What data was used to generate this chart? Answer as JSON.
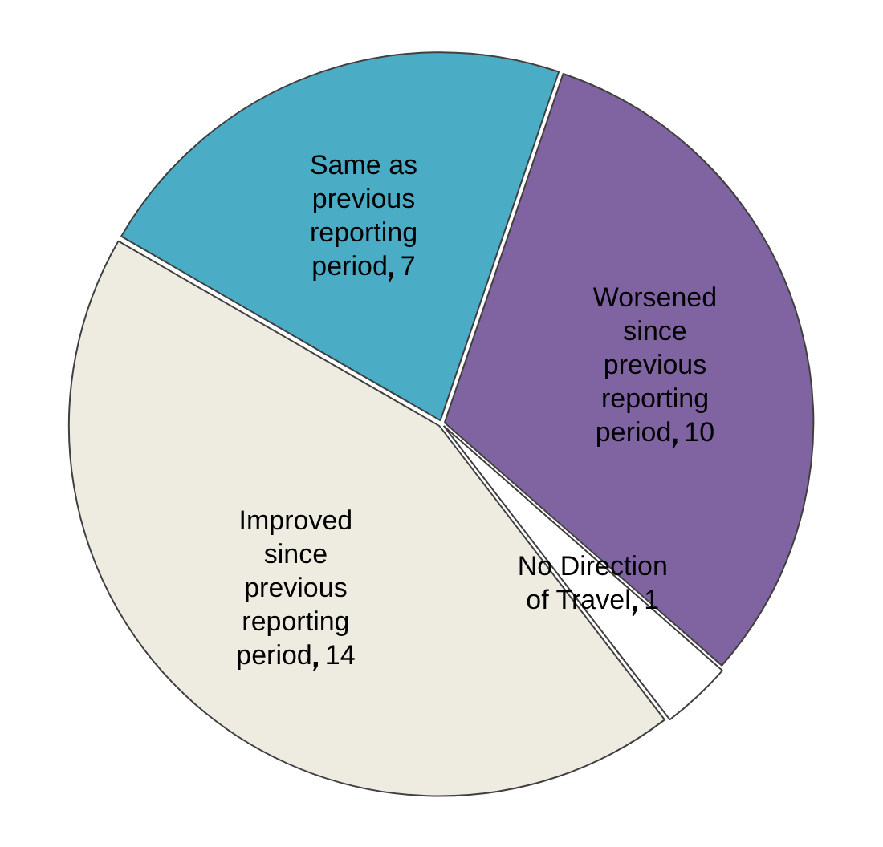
{
  "chart_data": {
    "type": "pie",
    "categories": [
      "Worsened since previous reporting period",
      "No Direction of Travel",
      "Improved since previous reporting period",
      "Same as previous reporting period"
    ],
    "values": [
      10,
      1,
      14,
      7
    ],
    "colors": [
      "#8064a2",
      "#ffffff",
      "#eeece1",
      "#4bacc6"
    ],
    "data_labels": true,
    "legend": false
  }
}
